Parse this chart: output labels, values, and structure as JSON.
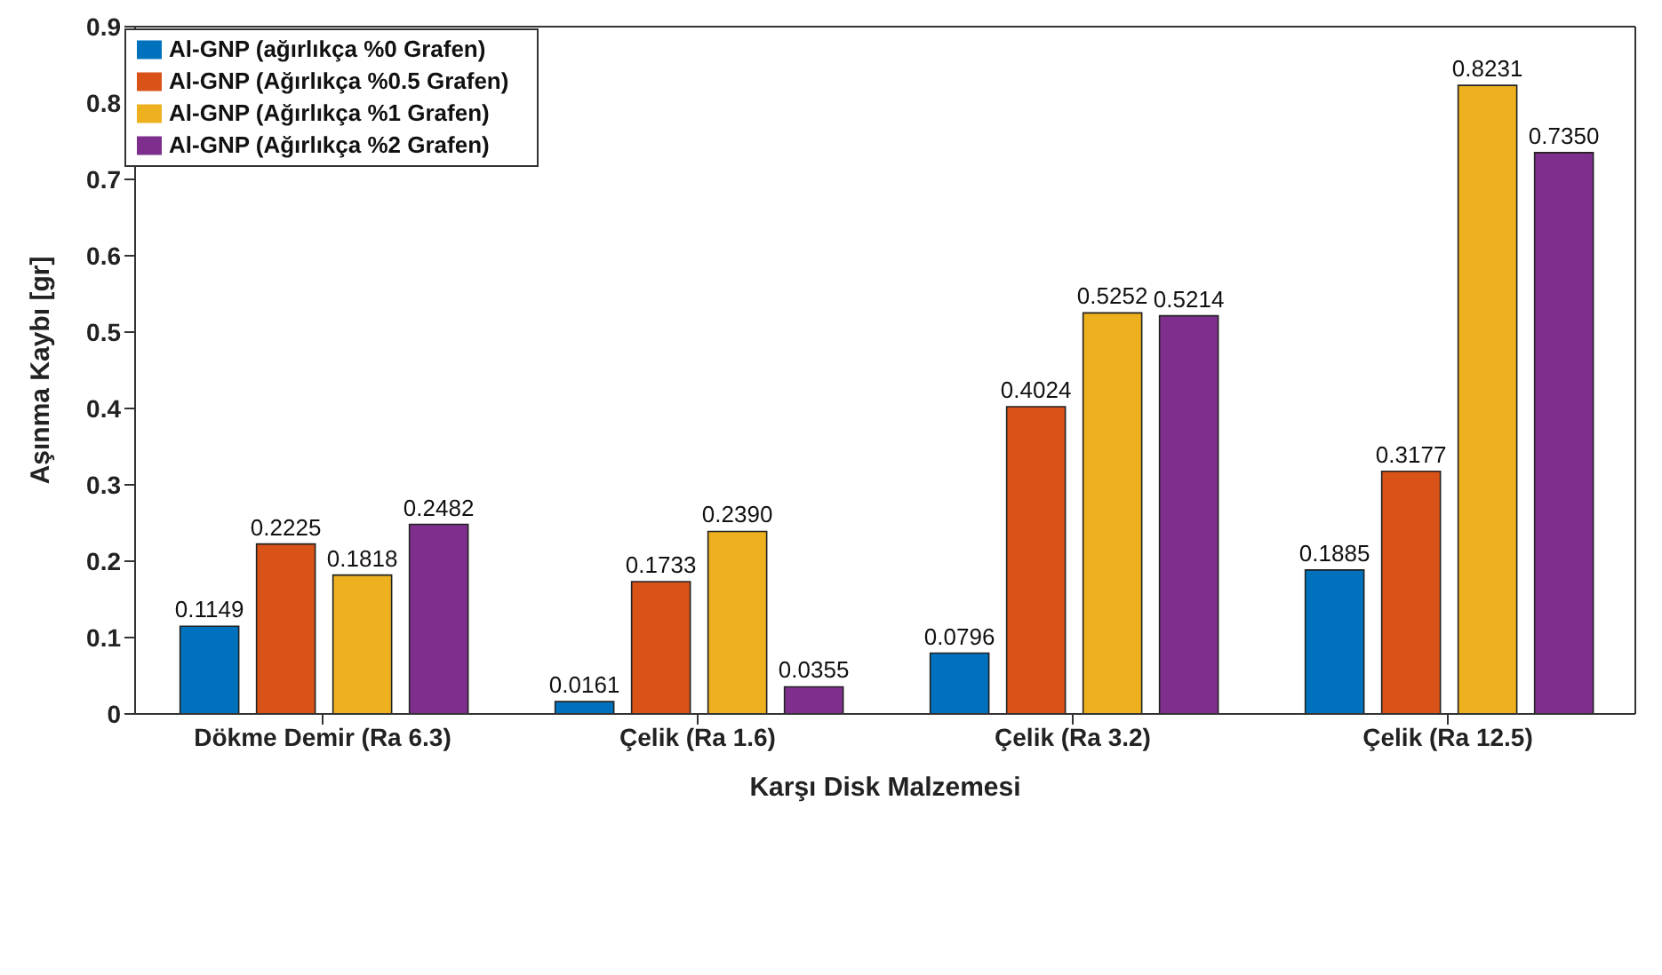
{
  "chart_data": {
    "type": "bar",
    "xlabel": "Karşı Disk Malzemesi",
    "ylabel": "Aşınma Kaybı [gr]",
    "categories": [
      "Dökme Demir (Ra 6.3)",
      "Çelik (Ra 1.6)",
      "Çelik (Ra 3.2)",
      "Çelik (Ra 12.5)"
    ],
    "series": [
      {
        "name": "Al-GNP (ağırlıkça %0 Grafen)",
        "color": "#0072bd",
        "values": [
          0.1149,
          0.0161,
          0.0796,
          0.1885
        ],
        "value_labels": [
          "0.1149",
          "0.0161",
          "0.0796",
          "0.1885"
        ]
      },
      {
        "name": "Al-GNP (Ağırlıkça %0.5 Grafen)",
        "color": "#d95319",
        "values": [
          0.2225,
          0.1733,
          0.4024,
          0.3177
        ],
        "value_labels": [
          "0.2225",
          "0.1733",
          "0.4024",
          "0.3177"
        ]
      },
      {
        "name": "Al-GNP (Ağırlıkça %1 Grafen)",
        "color": "#edb120",
        "values": [
          0.1818,
          0.239,
          0.5252,
          0.8231
        ],
        "value_labels": [
          "0.1818",
          "0.2390",
          "0.5252",
          "0.8231"
        ]
      },
      {
        "name": "Al-GNP (Ağırlıkça %2 Grafen)",
        "color": "#7e2f8e",
        "values": [
          0.2482,
          0.0355,
          0.5214,
          0.735
        ],
        "value_labels": [
          "0.2482",
          "0.0355",
          "0.5214",
          "0.7350"
        ]
      }
    ],
    "ylim": [
      0,
      0.9
    ],
    "yticks": [
      0,
      0.1,
      0.2,
      0.3,
      0.4,
      0.5,
      0.6,
      0.7,
      0.8,
      0.9
    ],
    "grid": false,
    "legend": "top left"
  }
}
